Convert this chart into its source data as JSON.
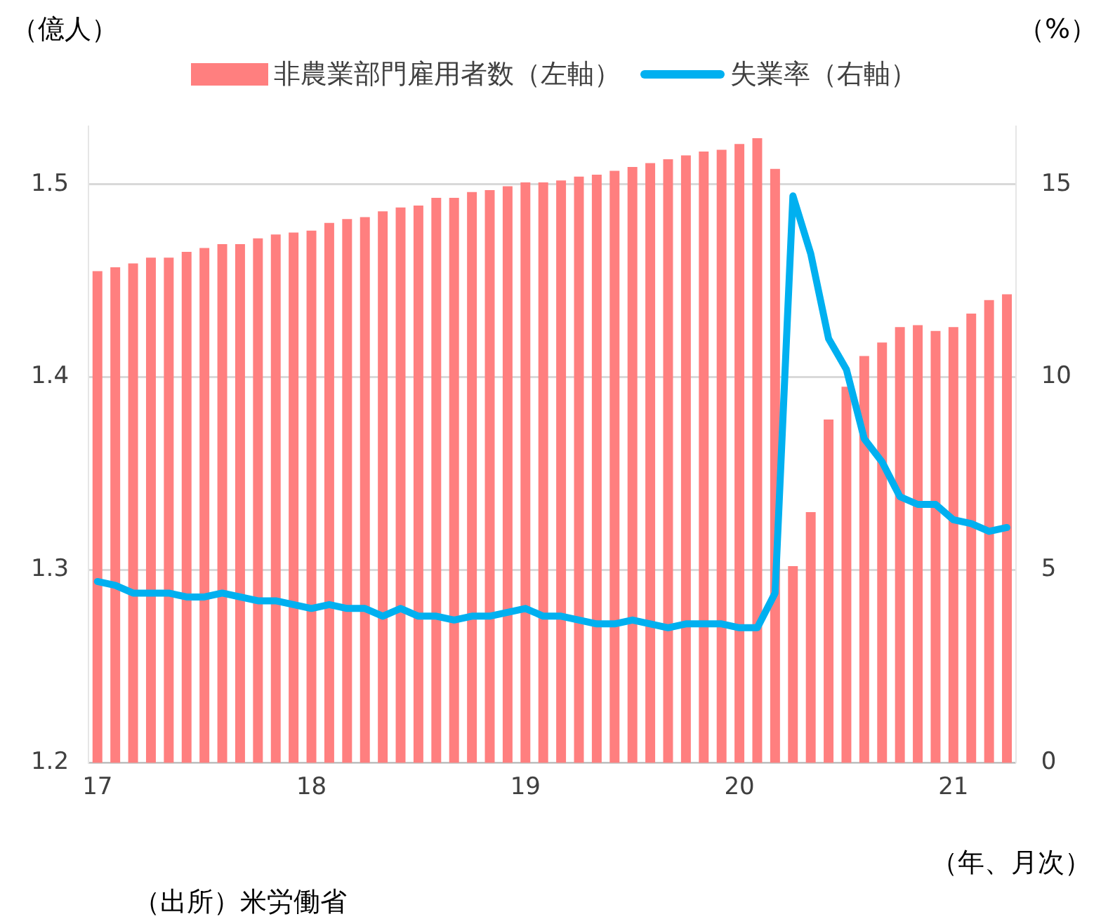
{
  "chart_data": {
    "type": "bar",
    "ylabel": "（億人）",
    "y2label": "（%）",
    "xlabel": "（年、月次）",
    "annotations": [
      "（出所）米労働省"
    ],
    "categories": [
      "17",
      null,
      null,
      null,
      null,
      null,
      null,
      null,
      null,
      null,
      null,
      null,
      "18",
      null,
      null,
      null,
      null,
      null,
      null,
      null,
      null,
      null,
      null,
      null,
      "19",
      null,
      null,
      null,
      null,
      null,
      null,
      null,
      null,
      null,
      null,
      null,
      "20",
      null,
      null,
      null,
      null,
      null,
      null,
      null,
      null,
      null,
      null,
      null,
      "21",
      null,
      null,
      null
    ],
    "series": [
      {
        "name": "非農業部門雇用者数（左軸）",
        "color": "#ff7f7f",
        "values": [
          1.455,
          1.457,
          1.459,
          1.462,
          1.462,
          1.465,
          1.467,
          1.469,
          1.469,
          1.472,
          1.474,
          1.475,
          1.476,
          1.48,
          1.482,
          1.483,
          1.486,
          1.488,
          1.489,
          1.493,
          1.493,
          1.496,
          1.497,
          1.499,
          1.501,
          1.501,
          1.502,
          1.504,
          1.505,
          1.507,
          1.509,
          1.511,
          1.513,
          1.515,
          1.517,
          1.518,
          1.521,
          1.524,
          1.508,
          1.302,
          1.33,
          1.378,
          1.395,
          1.411,
          1.418,
          1.426,
          1.427,
          1.424,
          1.426,
          1.433,
          1.44,
          1.443
        ]
      },
      {
        "name": "失業率（右軸）",
        "type": "line",
        "axis": "y2",
        "color": "#00b0f0",
        "values": [
          4.7,
          4.6,
          4.4,
          4.4,
          4.4,
          4.3,
          4.3,
          4.4,
          4.3,
          4.2,
          4.2,
          4.1,
          4.0,
          4.1,
          4.0,
          4.0,
          3.8,
          4.0,
          3.8,
          3.8,
          3.7,
          3.8,
          3.8,
          3.9,
          4.0,
          3.8,
          3.8,
          3.7,
          3.6,
          3.6,
          3.7,
          3.6,
          3.5,
          3.6,
          3.6,
          3.6,
          3.5,
          3.5,
          4.4,
          14.7,
          13.2,
          11.0,
          10.2,
          8.4,
          7.8,
          6.9,
          6.7,
          6.7,
          6.3,
          6.2,
          6.0,
          6.1
        ]
      }
    ],
    "ylim": [
      1.2,
      1.53
    ],
    "yticks": [
      1.2,
      1.3,
      1.4,
      1.5
    ],
    "y2lim": [
      0,
      16.5
    ],
    "y2ticks": [
      0,
      5,
      10,
      15
    ],
    "grid": "y",
    "legend": "top",
    "marker": "none",
    "line_style": "solid"
  }
}
